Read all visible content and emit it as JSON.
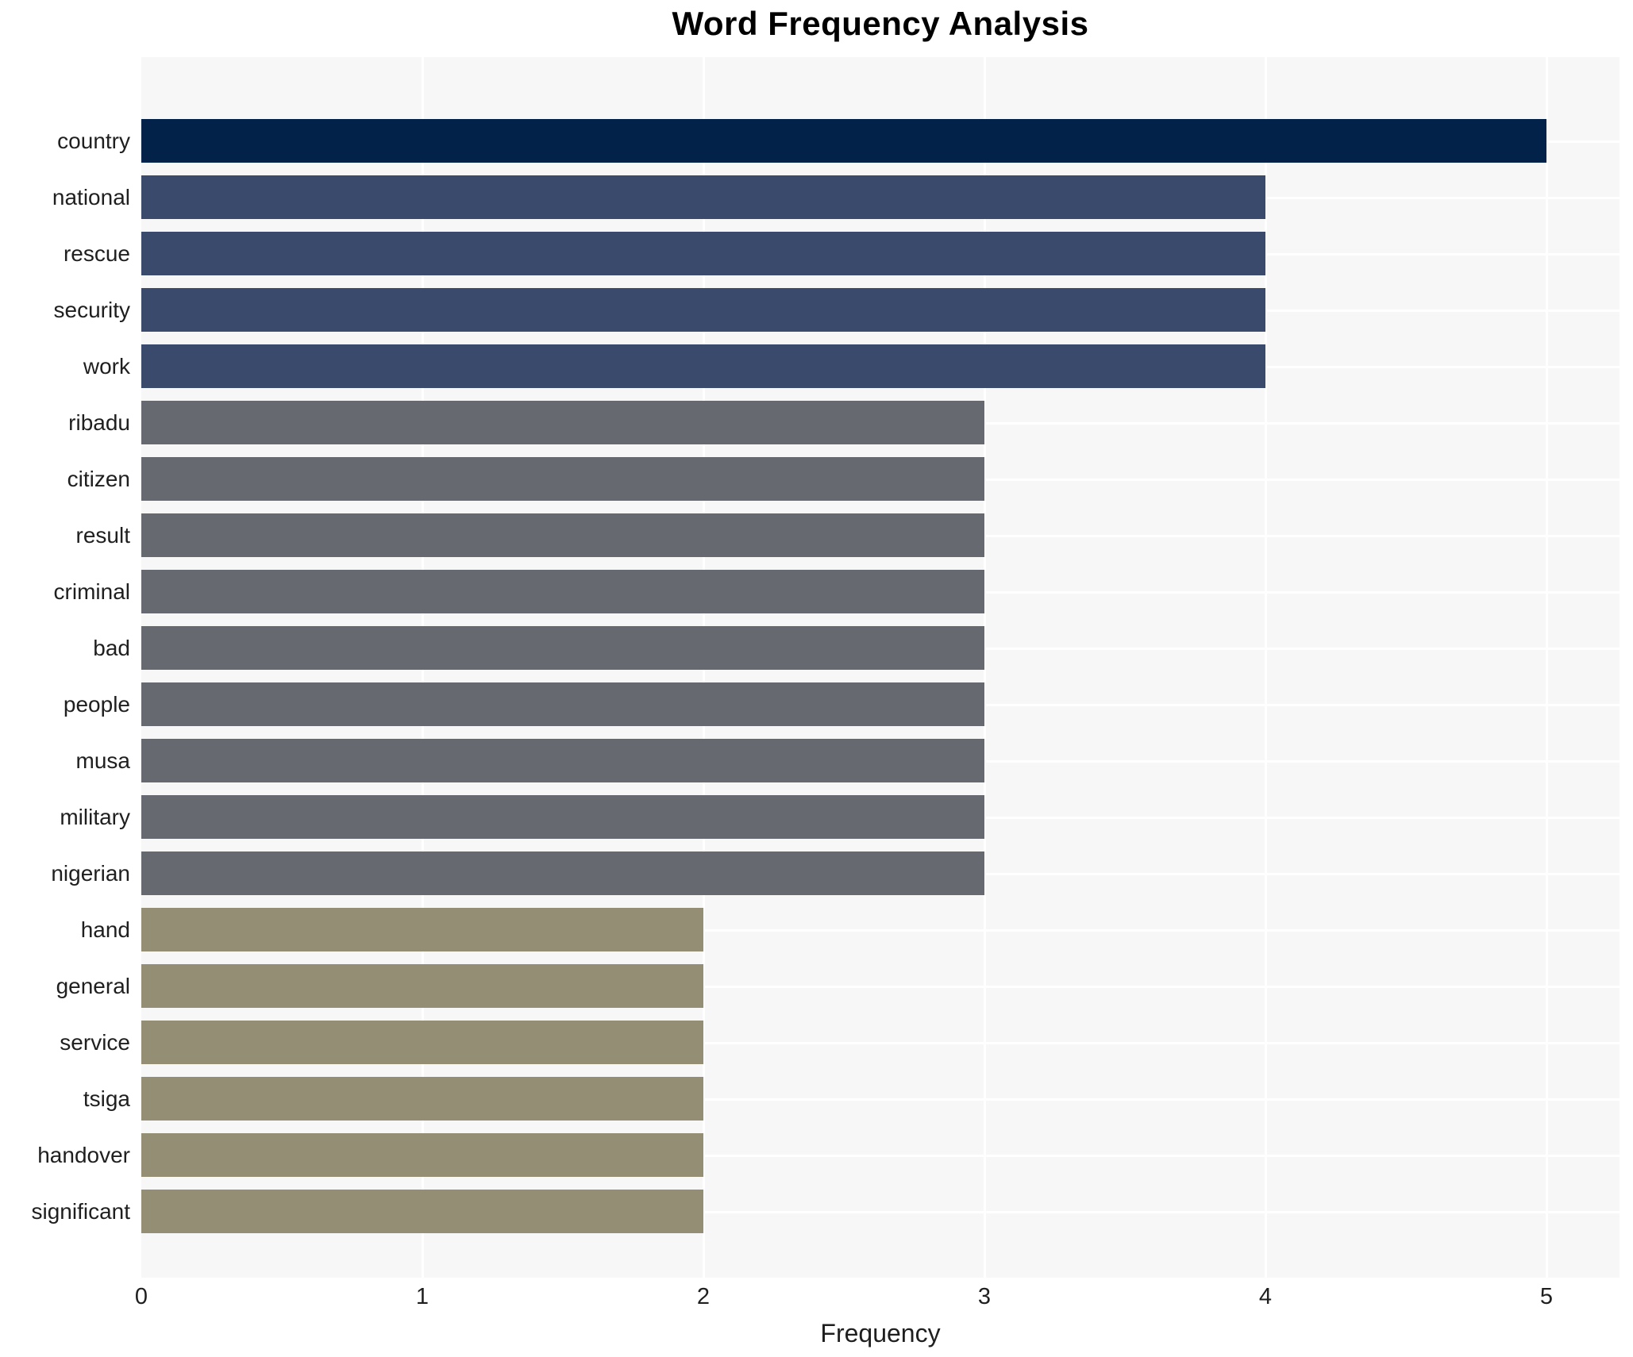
{
  "title": "Word Frequency Analysis",
  "x_axis_label": "Frequency",
  "chart_data": {
    "type": "bar",
    "orientation": "horizontal",
    "title": "Word Frequency Analysis",
    "xlabel": "Frequency",
    "ylabel": "",
    "categories": [
      "country",
      "national",
      "rescue",
      "security",
      "work",
      "ribadu",
      "citizen",
      "result",
      "criminal",
      "bad",
      "people",
      "musa",
      "military",
      "nigerian",
      "hand",
      "general",
      "service",
      "tsiga",
      "handover",
      "significant"
    ],
    "values": [
      5,
      4,
      4,
      4,
      4,
      3,
      3,
      3,
      3,
      3,
      3,
      3,
      3,
      3,
      2,
      2,
      2,
      2,
      2,
      2
    ],
    "bar_colors": [
      "#02224a",
      "#394a6d",
      "#394a6d",
      "#394a6d",
      "#394a6d",
      "#666970",
      "#666970",
      "#666970",
      "#666970",
      "#666970",
      "#666970",
      "#666970",
      "#666970",
      "#666970",
      "#948e74",
      "#948e74",
      "#948e74",
      "#948e74",
      "#948e74",
      "#948e74"
    ],
    "color_by_value": {
      "5": "#02224a",
      "4": "#394a6d",
      "3": "#666970",
      "2": "#948e74"
    },
    "x_ticks": [
      0,
      1,
      2,
      3,
      4,
      5
    ],
    "xlim": [
      0,
      5.26
    ],
    "grid": true,
    "grid_color": "#ffffff",
    "plot_background": "#f7f7f8",
    "figure_background": "#ffffff",
    "legend": "none"
  }
}
